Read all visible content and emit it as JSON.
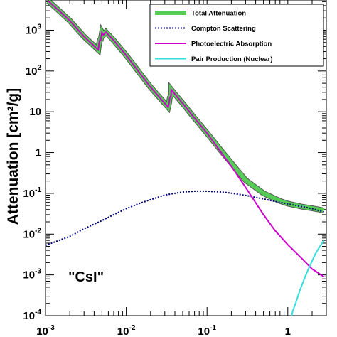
{
  "chart_data": {
    "type": "line",
    "x_scale": "log",
    "y_scale": "log",
    "xlim": [
      0.001,
      3.0
    ],
    "ylim": [
      0.0001,
      5500
    ],
    "ylabel": "Attenuation [cm²/g]",
    "annotation": "\"CsI\"",
    "grid": false,
    "legend_position": "top-right",
    "x_ticks": [
      {
        "base": "10",
        "exp": "-3",
        "value": 0.001
      },
      {
        "base": "10",
        "exp": "-2",
        "value": 0.01
      },
      {
        "base": "10",
        "exp": "-1",
        "value": 0.1
      },
      {
        "base": "1",
        "exp": "",
        "value": 1
      }
    ],
    "y_ticks": [
      {
        "base": "10",
        "exp": "3",
        "value": 1000
      },
      {
        "base": "10",
        "exp": "2",
        "value": 100
      },
      {
        "base": "10",
        "exp": "",
        "value": 10
      },
      {
        "base": "1",
        "exp": "",
        "value": 1
      },
      {
        "base": "10",
        "exp": "-1",
        "value": 0.1
      },
      {
        "base": "10",
        "exp": "-2",
        "value": 0.01
      },
      {
        "base": "10",
        "exp": "-3",
        "value": 0.001
      },
      {
        "base": "10",
        "exp": "-4",
        "value": 0.0001
      }
    ],
    "series": [
      {
        "name": "Total Attenuation",
        "color": "#55cc55",
        "x": [
          0.00108,
          0.0015,
          0.002,
          0.003,
          0.0045,
          0.0046,
          0.00475,
          0.0048,
          0.005,
          0.0052,
          0.0056,
          0.007,
          0.01,
          0.02,
          0.033,
          0.034,
          0.0345,
          0.0359,
          0.036,
          0.04,
          0.05,
          0.07,
          0.1,
          0.15,
          0.2,
          0.3,
          0.5,
          0.8,
          1,
          1.5,
          2,
          2.8
        ],
        "y": [
          5200,
          2900,
          1700,
          700,
          330,
          470,
          620,
          540,
          880,
          760,
          900,
          560,
          240,
          40,
          13,
          17,
          22,
          25,
          35,
          27,
          16,
          7,
          3,
          1.1,
          0.55,
          0.21,
          0.1,
          0.065,
          0.056,
          0.047,
          0.043,
          0.038
        ]
      },
      {
        "name": "Compton Scattering",
        "color": "#00007a",
        "x": [
          0.001,
          0.002,
          0.003,
          0.005,
          0.007,
          0.01,
          0.015,
          0.02,
          0.03,
          0.05,
          0.07,
          0.1,
          0.15,
          0.2,
          0.3,
          0.5,
          0.7,
          1,
          1.5,
          2,
          2.8
        ],
        "y": [
          0.0053,
          0.0088,
          0.0135,
          0.0215,
          0.03,
          0.042,
          0.058,
          0.07,
          0.091,
          0.108,
          0.113,
          0.113,
          0.108,
          0.101,
          0.089,
          0.073,
          0.063,
          0.055,
          0.047,
          0.042,
          0.035
        ]
      },
      {
        "name": "Photoelectric Absorption",
        "color": "#cc00cc",
        "x": [
          0.00108,
          0.0015,
          0.002,
          0.003,
          0.0045,
          0.0046,
          0.00475,
          0.0048,
          0.005,
          0.0052,
          0.0056,
          0.007,
          0.01,
          0.02,
          0.033,
          0.034,
          0.0345,
          0.0359,
          0.036,
          0.04,
          0.05,
          0.07,
          0.1,
          0.15,
          0.2,
          0.3,
          0.5,
          0.7,
          1,
          1.5,
          2,
          2.8
        ],
        "y": [
          5200,
          2900,
          1700,
          700,
          330,
          470,
          620,
          540,
          880,
          760,
          900,
          560,
          240,
          40,
          13,
          17,
          22,
          25,
          35,
          27,
          16,
          7,
          3,
          1.0,
          0.46,
          0.14,
          0.03,
          0.012,
          0.0055,
          0.0025,
          0.0014,
          0.0009
        ]
      },
      {
        "name": "Pair Production (Nuclear)",
        "color": "#33dddd",
        "x": [
          1.12,
          1.15,
          1.25,
          1.4,
          1.6,
          1.8,
          2.0,
          2.2,
          2.5,
          2.8
        ],
        "y": [
          0.0001,
          0.00013,
          0.0002,
          0.0004,
          0.0008,
          0.0014,
          0.0022,
          0.0033,
          0.005,
          0.007
        ]
      }
    ]
  }
}
